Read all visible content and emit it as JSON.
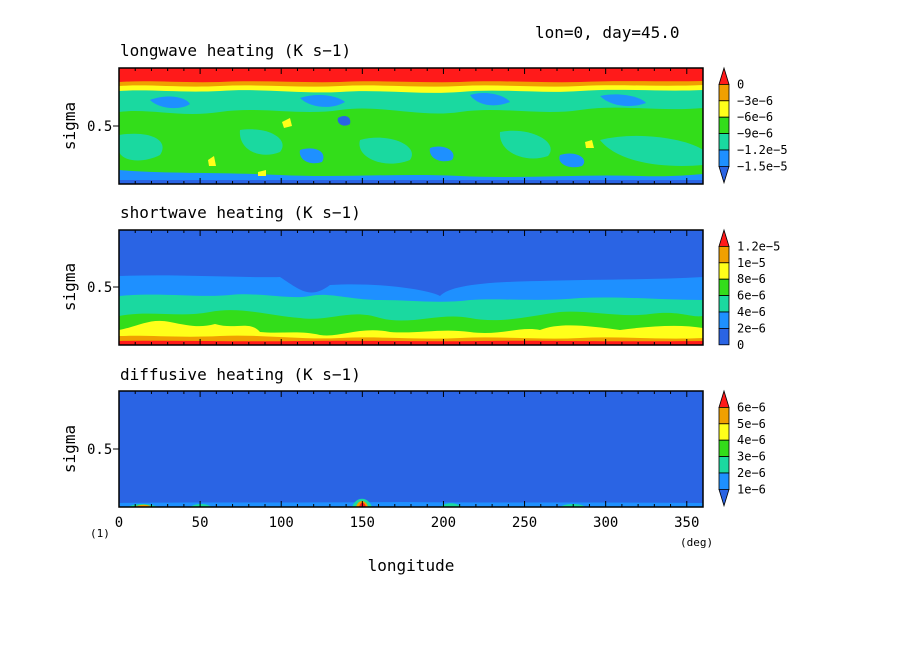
{
  "header": {
    "annotation": "lon=0, day=45.0"
  },
  "panel_marker": "(1)",
  "colors": {
    "darkblue": "#2a64e4",
    "blue": "#1e90ff",
    "cyan": "#1ad9a0",
    "green": "#33dd1a",
    "yellow": "#ffff1a",
    "orange": "#f0a000",
    "red": "#ff1a1a"
  },
  "chart_data": [
    {
      "type": "heatmap",
      "title": "longwave heating (K s−1)",
      "xlabel": "",
      "ylabel": "sigma",
      "xlim": [
        0,
        360
      ],
      "ylim": [
        0,
        1
      ],
      "yticks": [
        "0.5"
      ],
      "xticks": [],
      "colorbar": {
        "labels": [
          "0",
          "−3e−6",
          "−6e−6",
          "−9e−6",
          "−1.2e−5",
          "−1.5e−5"
        ],
        "levels": [
          0,
          -3e-06,
          -6e-06,
          -9e-06,
          -1.2e-05,
          -1.5e-05
        ]
      }
    },
    {
      "type": "heatmap",
      "title": "shortwave heating (K s−1)",
      "xlabel": "",
      "ylabel": "sigma",
      "xlim": [
        0,
        360
      ],
      "ylim": [
        0,
        1
      ],
      "yticks": [
        "0.5"
      ],
      "xticks": [],
      "colorbar": {
        "labels": [
          "1.2e−5",
          "1e−5",
          "8e−6",
          "6e−6",
          "4e−6",
          "2e−6",
          "0"
        ],
        "levels": [
          1.2e-05,
          1e-05,
          8e-06,
          6e-06,
          4e-06,
          2e-06,
          0
        ]
      }
    },
    {
      "type": "heatmap",
      "title": "diffusive heating (K s−1)",
      "xlabel": "longitude",
      "ylabel": "sigma",
      "xlim": [
        0,
        360
      ],
      "ylim": [
        0,
        1
      ],
      "yticks": [
        "0.5"
      ],
      "xticks": [
        "0",
        "50",
        "100",
        "150",
        "200",
        "250",
        "300",
        "350"
      ],
      "x_unit": "(deg)",
      "colorbar": {
        "labels": [
          "6e−6",
          "5e−6",
          "4e−6",
          "3e−6",
          "2e−6",
          "1e−6"
        ],
        "levels": [
          6e-06,
          5e-06,
          4e-06,
          3e-06,
          2e-06,
          1e-06
        ]
      }
    }
  ]
}
